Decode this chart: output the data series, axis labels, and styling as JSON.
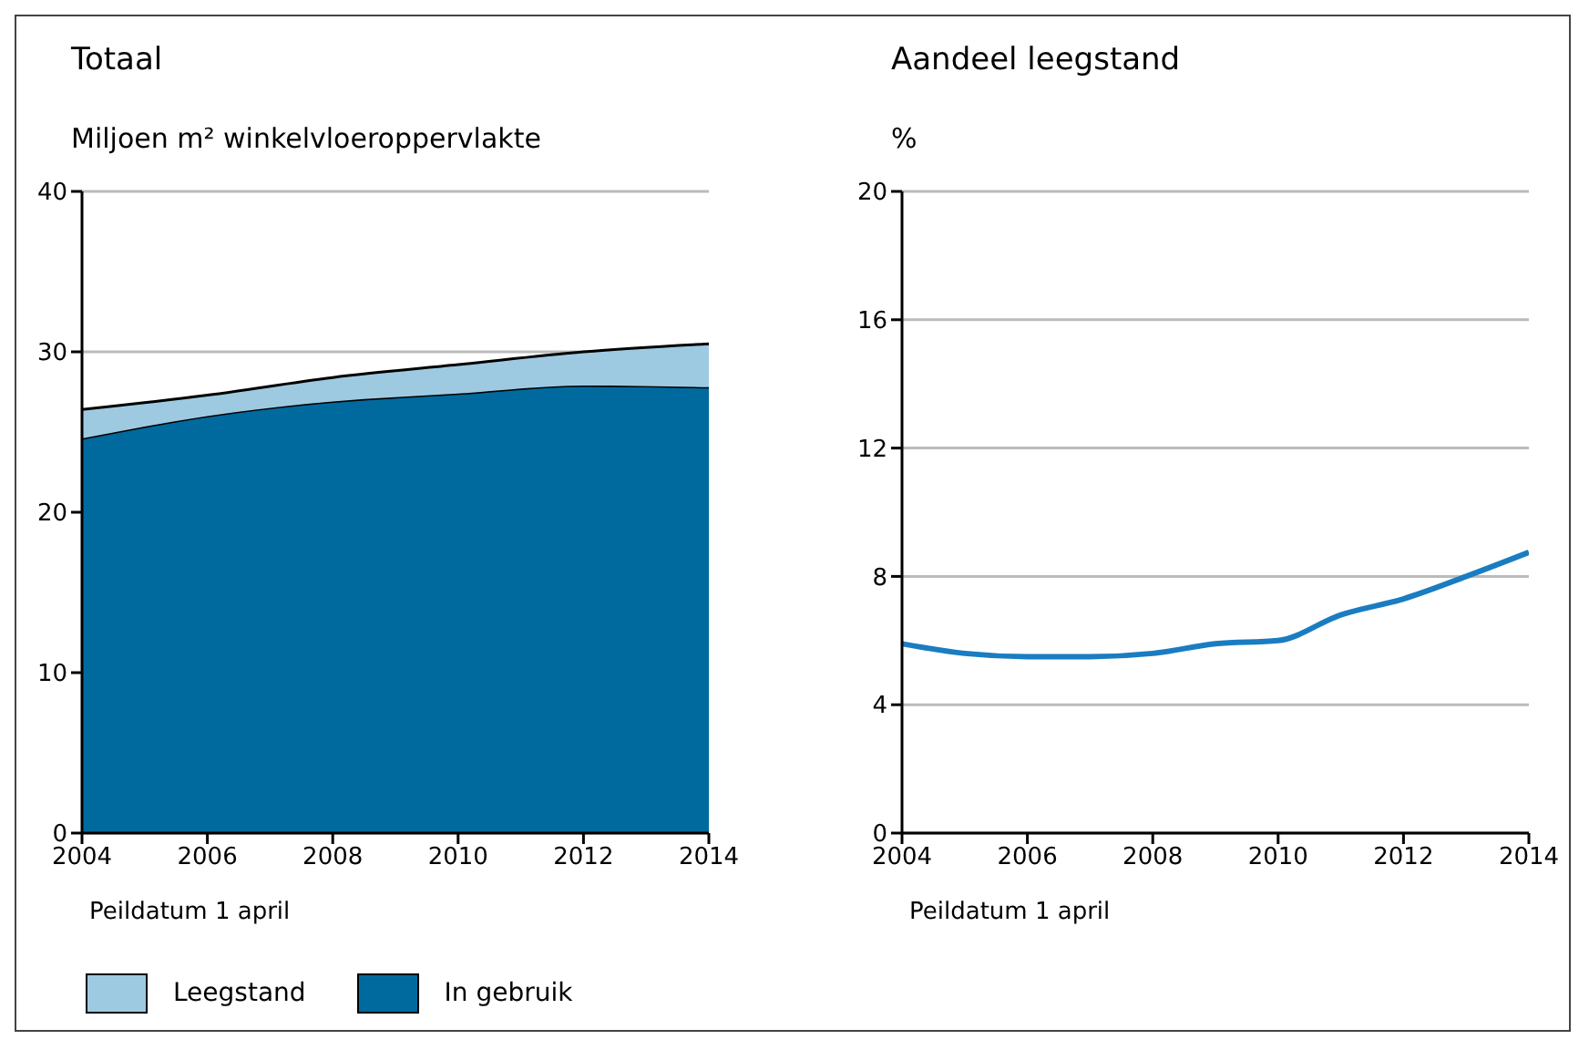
{
  "chart_data": [
    {
      "type": "area",
      "title": "Totaal",
      "ylabel": "Miljoen m² winkelvloeroppervlakte",
      "xlabel": "Peildatum 1 april",
      "stacked": true,
      "x": [
        2004,
        2006,
        2008,
        2010,
        2012,
        2014
      ],
      "xlim": [
        2004,
        2014
      ],
      "xticks": [
        2004,
        2006,
        2008,
        2010,
        2012,
        2014
      ],
      "ylim": [
        0,
        40
      ],
      "yticks": [
        0,
        10,
        20,
        30,
        40
      ],
      "grid": "y",
      "legend": "bottom",
      "series": [
        {
          "name": "In gebruik",
          "color": "#006a9e",
          "values": [
            24.6,
            26.0,
            26.9,
            27.4,
            27.9,
            27.8
          ]
        },
        {
          "name": "Leegstand",
          "color": "#9ecae1",
          "values": [
            1.8,
            1.3,
            1.5,
            1.8,
            2.1,
            2.7
          ]
        }
      ]
    },
    {
      "type": "line",
      "title": "Aandeel leegstand",
      "ylabel": "%",
      "xlabel": "Peildatum 1 april",
      "x": [
        2004,
        2005,
        2006,
        2007,
        2008,
        2009,
        2010,
        2011,
        2012,
        2013,
        2014
      ],
      "xlim": [
        2004,
        2014
      ],
      "xticks": [
        2004,
        2006,
        2008,
        2010,
        2012,
        2014
      ],
      "ylim": [
        0,
        20
      ],
      "yticks": [
        0,
        4,
        8,
        12,
        16,
        20
      ],
      "grid": "y",
      "series": [
        {
          "color": "#1a7cc1",
          "values": [
            5.9,
            5.6,
            5.5,
            5.5,
            5.6,
            5.9,
            6.0,
            6.8,
            7.3,
            8.0,
            8.75
          ]
        }
      ]
    }
  ]
}
